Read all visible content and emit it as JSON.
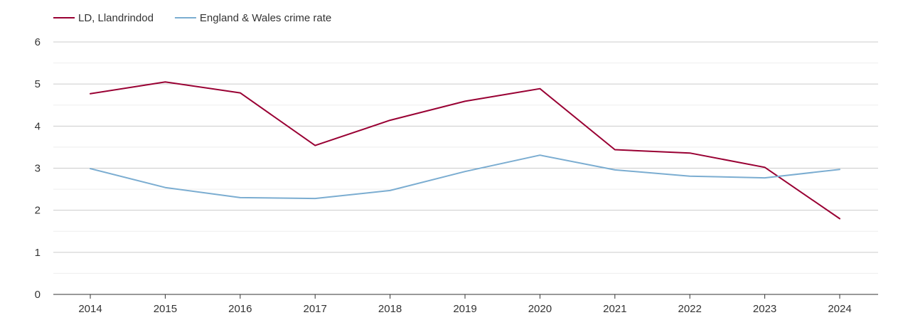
{
  "chart_data": {
    "type": "line",
    "x": [
      "2014",
      "2015",
      "2016",
      "2017",
      "2018",
      "2019",
      "2020",
      "2021",
      "2022",
      "2023",
      "2024"
    ],
    "series": [
      {
        "name": "LD, Llandrindod",
        "color": "#990033",
        "values": [
          4.77,
          5.05,
          4.79,
          3.54,
          4.14,
          4.59,
          4.89,
          3.44,
          3.36,
          3.02,
          1.8
        ]
      },
      {
        "name": "England & Wales crime rate",
        "color": "#7badd1",
        "values": [
          2.99,
          2.54,
          2.3,
          2.28,
          2.47,
          2.92,
          3.31,
          2.96,
          2.81,
          2.77,
          2.97
        ]
      }
    ],
    "ylim": [
      0,
      6
    ],
    "yticks": [
      "0",
      "1",
      "2",
      "3",
      "4",
      "5",
      "6"
    ],
    "grid": true,
    "legend_position": "top-left",
    "title": "",
    "xlabel": "",
    "ylabel": ""
  }
}
